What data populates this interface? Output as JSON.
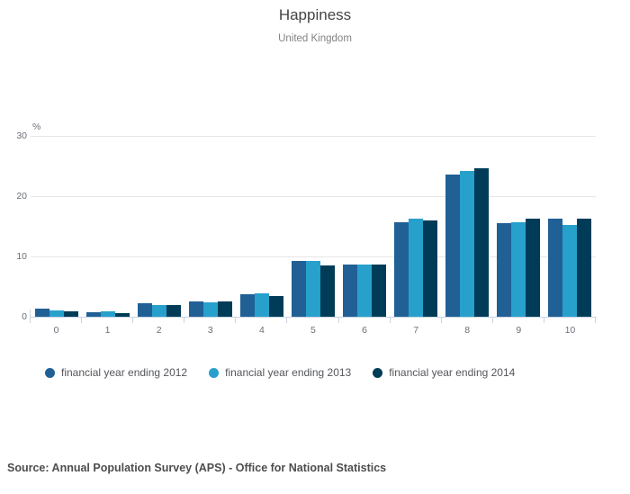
{
  "header": {
    "title": "Happiness",
    "subtitle": "United Kingdom"
  },
  "footer": {
    "source": "Source: Annual Population Survey (APS) - Office for National Statistics"
  },
  "colors": {
    "fy2012": "#206095",
    "fy2013": "#27a0cc",
    "fy2014": "#003c57",
    "gridline": "#e6e6e6",
    "axis": "#c8d4e3"
  },
  "chart_data": {
    "type": "bar",
    "title": "Happiness",
    "subtitle": "United Kingdom",
    "xlabel": "",
    "ylabel": "%",
    "ylim": [
      0,
      30
    ],
    "yticks": [
      0,
      10,
      20,
      30
    ],
    "grid": true,
    "legend_position": "bottom-left",
    "categories": [
      "0",
      "1",
      "2",
      "3",
      "4",
      "5",
      "6",
      "7",
      "8",
      "9",
      "10"
    ],
    "series": [
      {
        "name": "financial year ending 2012",
        "color": "#206095",
        "values": [
          1.3,
          0.8,
          2.2,
          2.6,
          3.7,
          9.3,
          8.7,
          15.7,
          23.6,
          15.5,
          16.3
        ]
      },
      {
        "name": "financial year ending 2013",
        "color": "#27a0cc",
        "values": [
          1.1,
          0.9,
          1.9,
          2.4,
          3.9,
          9.3,
          8.7,
          16.2,
          24.2,
          15.7,
          15.3
        ]
      },
      {
        "name": "financial year ending 2014",
        "color": "#003c57",
        "values": [
          0.9,
          0.6,
          2.0,
          2.5,
          3.4,
          8.5,
          8.6,
          16.0,
          24.7,
          16.3,
          16.3
        ]
      }
    ]
  }
}
